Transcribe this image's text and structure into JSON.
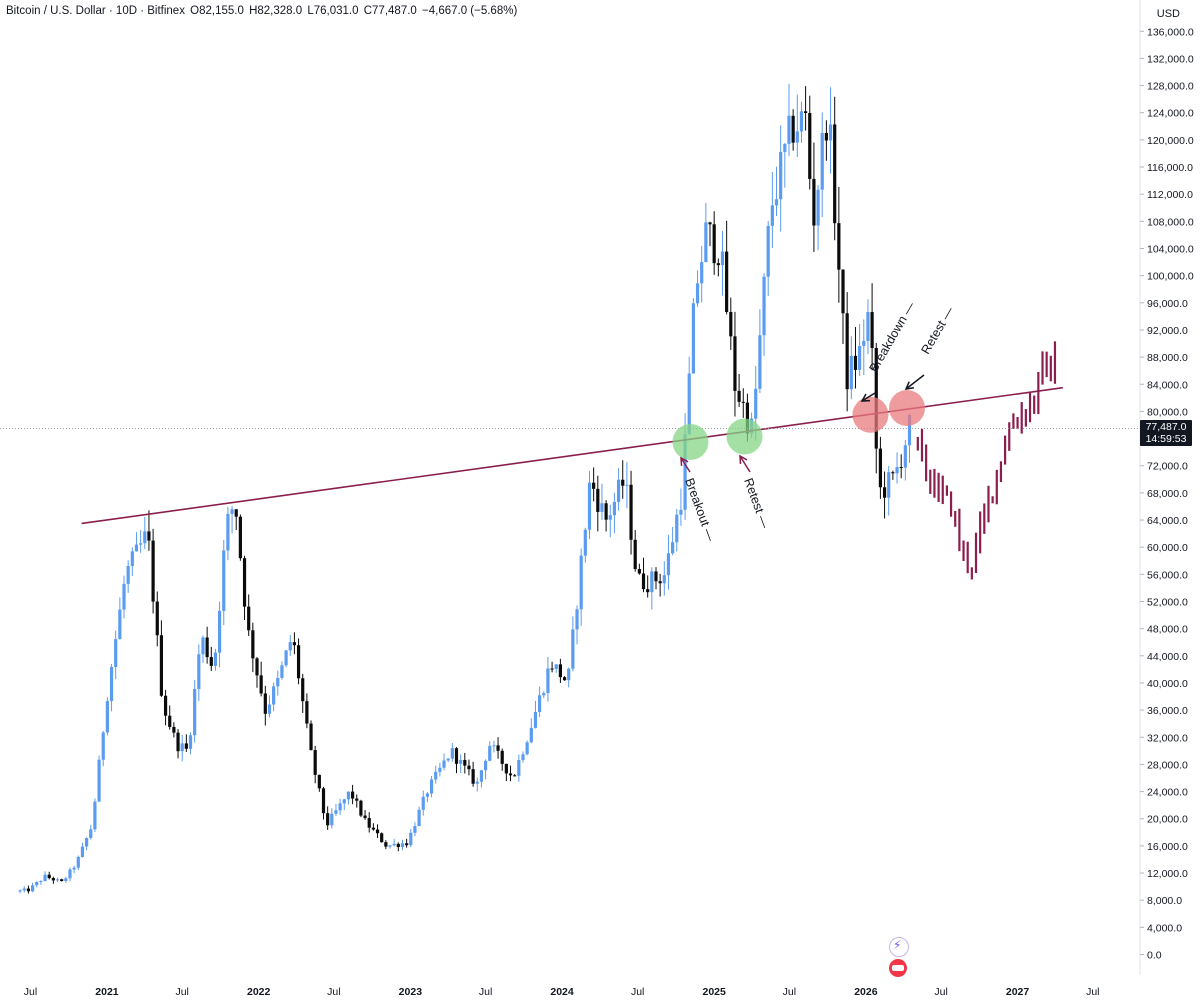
{
  "header": {
    "symbol": "Bitcoin / U.S. Dollar · 10D · Bitfinex",
    "open": "O82,155.0",
    "high": "H82,328.0",
    "low": "L76,031.0",
    "close": "C77,487.0",
    "change": "−4,667.0 (−5.68%)"
  },
  "currency": "USD",
  "price_label": {
    "price": "77,487.0",
    "countdown": "14:59:53"
  },
  "colors": {
    "up": "#5b9cf0",
    "down": "#0b0b0b",
    "trendline": "#8b1e4e",
    "projection": "#8b1e4e",
    "green_circle": "#86d686",
    "red_circle": "#ea7b7f"
  },
  "chart_data": {
    "type": "candlestick",
    "title": "Bitcoin / U.S. Dollar · 10D · Bitfinex",
    "y_axis": {
      "position": "right",
      "ticks": [
        "136,000.0",
        "132,000.0",
        "128,000.0",
        "124,000.0",
        "120,000.0",
        "116,000.0",
        "112,000.0",
        "108,000.0",
        "104,000.0",
        "100,000.0",
        "96,000.0",
        "92,000.0",
        "88,000.0",
        "84,000.0",
        "80,000.0",
        "76,000.0",
        "72,000.0",
        "68,000.0",
        "64,000.0",
        "60,000.0",
        "56,000.0",
        "52,000.0",
        "48,000.0",
        "44,000.0",
        "40,000.0",
        "36,000.0",
        "32,000.0",
        "28,000.0",
        "24,000.0",
        "20,000.0",
        "16,000.0",
        "12,000.0",
        "8,000.0",
        "4,000.0",
        "0.0"
      ],
      "ylim": [
        0,
        136000
      ]
    },
    "x_axis": {
      "ticks": [
        {
          "label": "Jul",
          "date": "2020-07-01",
          "bold": false
        },
        {
          "label": "2021",
          "date": "2021-01-01",
          "bold": true
        },
        {
          "label": "Jul",
          "date": "2021-07-01",
          "bold": false
        },
        {
          "label": "2022",
          "date": "2022-01-01",
          "bold": true
        },
        {
          "label": "Jul",
          "date": "2022-07-01",
          "bold": false
        },
        {
          "label": "2023",
          "date": "2023-01-01",
          "bold": true
        },
        {
          "label": "Jul",
          "date": "2023-07-01",
          "bold": false
        },
        {
          "label": "2024",
          "date": "2024-01-01",
          "bold": true
        },
        {
          "label": "Jul",
          "date": "2024-07-01",
          "bold": false
        },
        {
          "label": "2025",
          "date": "2025-01-01",
          "bold": true
        },
        {
          "label": "Jul",
          "date": "2025-07-01",
          "bold": false
        },
        {
          "label": "2026",
          "date": "2026-01-01",
          "bold": true
        },
        {
          "label": "Jul",
          "date": "2026-07-01",
          "bold": false
        },
        {
          "label": "2027",
          "date": "2027-01-01",
          "bold": true
        },
        {
          "label": "Jul",
          "date": "2027-07-01",
          "bold": false
        }
      ]
    },
    "price_path": [
      [
        "2020-06-01",
        9300
      ],
      [
        "2020-07-01",
        9500
      ],
      [
        "2020-08-10",
        11500
      ],
      [
        "2020-09-20",
        10600
      ],
      [
        "2020-10-25",
        13500
      ],
      [
        "2020-12-01",
        19000
      ],
      [
        "2021-01-08",
        39000
      ],
      [
        "2021-02-20",
        56000
      ],
      [
        "2021-04-14",
        62000
      ],
      [
        "2021-05-20",
        37000
      ],
      [
        "2021-06-22",
        31000
      ],
      [
        "2021-07-20",
        30000
      ],
      [
        "2021-08-20",
        47000
      ],
      [
        "2021-09-20",
        42000
      ],
      [
        "2021-10-20",
        63000
      ],
      [
        "2021-11-10",
        67000
      ],
      [
        "2021-12-10",
        48000
      ],
      [
        "2022-01-22",
        36000
      ],
      [
        "2022-02-20",
        40000
      ],
      [
        "2022-03-28",
        47000
      ],
      [
        "2022-05-10",
        30000
      ],
      [
        "2022-06-18",
        19000
      ],
      [
        "2022-08-14",
        24000
      ],
      [
        "2022-09-20",
        19500
      ],
      [
        "2022-11-10",
        16000
      ],
      [
        "2022-12-30",
        16500
      ],
      [
        "2023-02-15",
        24000
      ],
      [
        "2023-04-14",
        30000
      ],
      [
        "2023-06-15",
        25000
      ],
      [
        "2023-07-15",
        31000
      ],
      [
        "2023-09-10",
        26000
      ],
      [
        "2023-10-25",
        34000
      ],
      [
        "2023-12-10",
        43000
      ],
      [
        "2024-01-20",
        40000
      ],
      [
        "2024-03-14",
        70000
      ],
      [
        "2024-04-20",
        64000
      ],
      [
        "2024-06-05",
        70000
      ],
      [
        "2024-07-05",
        55000
      ],
      [
        "2024-08-05",
        55000
      ],
      [
        "2024-09-10",
        56000
      ],
      [
        "2024-10-20",
        68000
      ],
      [
        "2024-11-22",
        98000
      ],
      [
        "2024-12-17",
        106000
      ],
      [
        "2025-01-20",
        104000
      ],
      [
        "2025-02-25",
        84000
      ],
      [
        "2025-04-08",
        77000
      ],
      [
        "2025-05-22",
        110000
      ],
      [
        "2025-07-14",
        122000
      ],
      [
        "2025-08-14",
        123000
      ],
      [
        "2025-09-01",
        108000
      ],
      [
        "2025-10-06",
        125000
      ],
      [
        "2025-11-20",
        85000
      ],
      [
        "2025-12-20",
        88000
      ],
      [
        "2026-01-15",
        95000
      ],
      [
        "2026-02-05",
        68000
      ],
      [
        "2026-03-15",
        70000
      ],
      [
        "2026-04-20",
        77500
      ]
    ],
    "projection_path": [
      [
        "2026-05-01",
        76000
      ],
      [
        "2026-06-01",
        71000
      ],
      [
        "2026-07-01",
        68000
      ],
      [
        "2026-08-01",
        66000
      ],
      [
        "2026-08-20",
        60000
      ],
      [
        "2026-09-15",
        57000
      ],
      [
        "2026-10-15",
        64000
      ],
      [
        "2026-11-20",
        72000
      ],
      [
        "2026-12-20",
        78000
      ],
      [
        "2027-01-20",
        80000
      ],
      [
        "2027-02-15",
        82000
      ],
      [
        "2027-03-15",
        87000
      ],
      [
        "2027-03-30",
        86000
      ]
    ],
    "trendline": {
      "start": [
        "2020-11-01",
        63500
      ],
      "end": [
        "2027-04-20",
        83500
      ]
    },
    "last_price": 77487,
    "markers": [
      {
        "type": "green-circle",
        "date": "2024-11-05",
        "value": 75500
      },
      {
        "type": "green-circle",
        "date": "2025-03-15",
        "value": 76300
      },
      {
        "type": "red-circle",
        "date": "2026-01-12",
        "value": 79500
      },
      {
        "type": "red-circle",
        "date": "2026-04-10",
        "value": 80500
      }
    ],
    "annotations": [
      {
        "text": "Breakout —",
        "date": "2024-11-20",
        "value": 70000,
        "rotate": 70
      },
      {
        "text": "Retest —",
        "date": "2025-03-28",
        "value": 70000,
        "rotate": 70
      },
      {
        "text": "Breakdown —",
        "date": "2026-02-10",
        "value": 90000,
        "rotate": -60
      },
      {
        "text": "Retest —",
        "date": "2026-05-10",
        "value": 90000,
        "rotate": -60
      }
    ]
  }
}
